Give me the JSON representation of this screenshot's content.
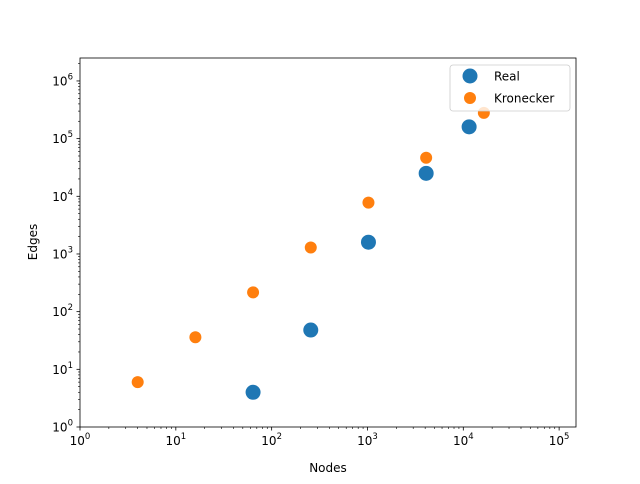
{
  "chart_data": {
    "type": "scatter",
    "title": "",
    "xlabel": "Nodes",
    "ylabel": "Edges",
    "xscale": "log",
    "yscale": "log",
    "xlim": [
      1,
      150000
    ],
    "ylim": [
      1,
      2500000
    ],
    "grid": false,
    "legend_position": "top-right",
    "x_ticks": [
      {
        "value": 1,
        "base": "10",
        "exp": "0"
      },
      {
        "value": 10,
        "base": "10",
        "exp": "1"
      },
      {
        "value": 100,
        "base": "10",
        "exp": "2"
      },
      {
        "value": 1000,
        "base": "10",
        "exp": "3"
      },
      {
        "value": 10000,
        "base": "10",
        "exp": "4"
      },
      {
        "value": 100000,
        "base": "10",
        "exp": "5"
      }
    ],
    "y_ticks": [
      {
        "value": 1,
        "base": "10",
        "exp": "0"
      },
      {
        "value": 10,
        "base": "10",
        "exp": "1"
      },
      {
        "value": 100,
        "base": "10",
        "exp": "2"
      },
      {
        "value": 1000,
        "base": "10",
        "exp": "3"
      },
      {
        "value": 10000,
        "base": "10",
        "exp": "4"
      },
      {
        "value": 100000,
        "base": "10",
        "exp": "5"
      },
      {
        "value": 1000000,
        "base": "10",
        "exp": "6"
      }
    ],
    "series": [
      {
        "name": "Real",
        "color": "#1f77b4",
        "marker": "large-circle",
        "points": [
          {
            "x": 64,
            "y": 4
          },
          {
            "x": 256,
            "y": 48
          },
          {
            "x": 1024,
            "y": 1600
          },
          {
            "x": 4096,
            "y": 25000
          },
          {
            "x": 11500,
            "y": 160000
          }
        ]
      },
      {
        "name": "Kronecker",
        "color": "#ff7f0e",
        "marker": "small-circle",
        "points": [
          {
            "x": 4,
            "y": 6
          },
          {
            "x": 16,
            "y": 36
          },
          {
            "x": 64,
            "y": 216
          },
          {
            "x": 256,
            "y": 1296
          },
          {
            "x": 1024,
            "y": 7776
          },
          {
            "x": 4096,
            "y": 46656
          },
          {
            "x": 16384,
            "y": 279936
          }
        ]
      }
    ]
  }
}
